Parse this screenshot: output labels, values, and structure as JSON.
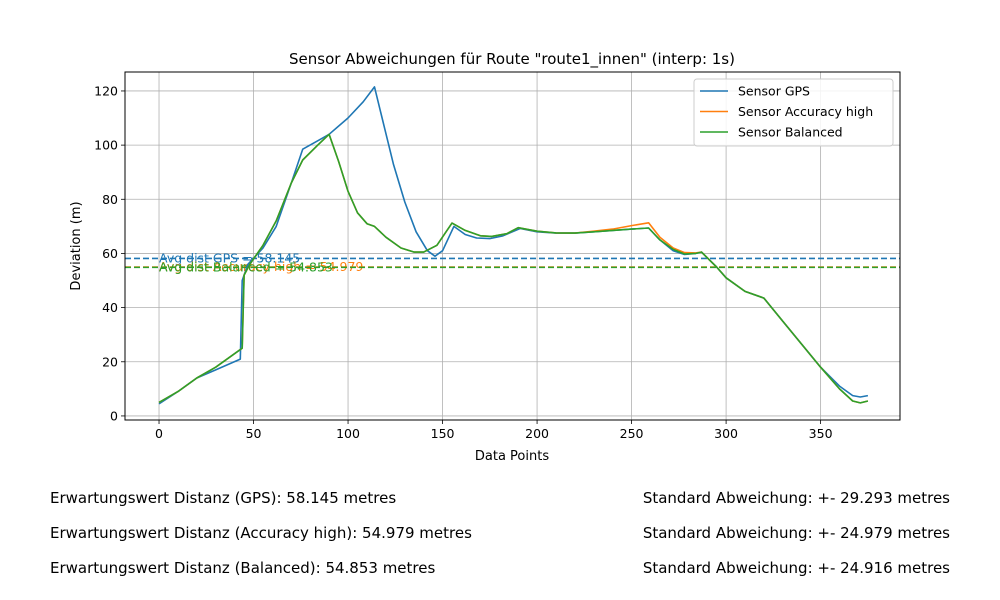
{
  "chart_data": {
    "type": "line",
    "title": "Sensor Abweichungen für Route \"route1_innen\" (interp: 1s)",
    "xlabel": "Data Points",
    "ylabel": "Deviation (m)",
    "xlim": [
      -18,
      392
    ],
    "ylim": [
      -1.5,
      127
    ],
    "xticks": [
      0,
      50,
      100,
      150,
      200,
      250,
      300,
      350
    ],
    "yticks": [
      0,
      20,
      40,
      60,
      80,
      100,
      120
    ],
    "grid": true,
    "legend_position": "top-right",
    "series": [
      {
        "name": "Sensor GPS",
        "color": "#1f77b4",
        "points": [
          [
            0,
            4.5
          ],
          [
            10,
            9
          ],
          [
            20,
            14
          ],
          [
            30,
            17
          ],
          [
            43,
            21
          ],
          [
            44,
            50
          ],
          [
            47,
            56
          ],
          [
            55,
            62
          ],
          [
            62,
            70
          ],
          [
            70,
            86
          ],
          [
            76,
            98.5
          ],
          [
            85,
            102
          ],
          [
            90,
            104
          ],
          [
            100,
            110
          ],
          [
            108,
            116
          ],
          [
            114,
            121.5
          ],
          [
            118,
            110
          ],
          [
            124,
            93
          ],
          [
            130,
            79
          ],
          [
            136,
            68
          ],
          [
            142,
            61
          ],
          [
            146,
            59
          ],
          [
            150,
            61
          ],
          [
            156,
            70
          ],
          [
            162,
            67
          ],
          [
            168,
            65.7
          ],
          [
            175,
            65.5
          ],
          [
            182,
            66.5
          ],
          [
            191,
            69.2
          ],
          [
            200,
            68
          ],
          [
            210,
            67.5
          ],
          [
            220,
            67.5
          ],
          [
            230,
            68
          ],
          [
            240,
            68.5
          ],
          [
            250,
            69
          ],
          [
            259,
            69.4
          ],
          [
            265,
            65
          ],
          [
            272,
            61
          ],
          [
            278,
            59.6
          ],
          [
            284,
            60
          ],
          [
            287,
            60.5
          ],
          [
            295,
            55
          ],
          [
            300,
            51
          ],
          [
            310,
            46
          ],
          [
            320,
            43.5
          ],
          [
            330,
            35
          ],
          [
            340,
            26.5
          ],
          [
            350,
            18
          ],
          [
            360,
            11
          ],
          [
            367,
            7.5
          ],
          [
            371,
            7
          ],
          [
            375,
            7.5
          ]
        ]
      },
      {
        "name": "Sensor Accuracy high",
        "color": "#ff7f0e",
        "points": [
          [
            0,
            5
          ],
          [
            10,
            9
          ],
          [
            20,
            14
          ],
          [
            30,
            18
          ],
          [
            44,
            25
          ],
          [
            45,
            52
          ],
          [
            48,
            56
          ],
          [
            55,
            63
          ],
          [
            62,
            72
          ],
          [
            70,
            86
          ],
          [
            76,
            94.5
          ],
          [
            84,
            100
          ],
          [
            90,
            104
          ],
          [
            95,
            94
          ],
          [
            100,
            83
          ],
          [
            105,
            75
          ],
          [
            110,
            71
          ],
          [
            114,
            70
          ],
          [
            120,
            66
          ],
          [
            128,
            62
          ],
          [
            135,
            60.5
          ],
          [
            140,
            60.5
          ],
          [
            147,
            63
          ],
          [
            155,
            71.2
          ],
          [
            162,
            68.5
          ],
          [
            170,
            66.5
          ],
          [
            176,
            66.3
          ],
          [
            184,
            67.3
          ],
          [
            190,
            69.5
          ],
          [
            200,
            68.2
          ],
          [
            210,
            67.6
          ],
          [
            220,
            67.5
          ],
          [
            230,
            68.2
          ],
          [
            240,
            69
          ],
          [
            250,
            70.3
          ],
          [
            259,
            71.3
          ],
          [
            265,
            66
          ],
          [
            272,
            62
          ],
          [
            278,
            60.3
          ],
          [
            284,
            60.2
          ],
          [
            287,
            60.5
          ],
          [
            295,
            55
          ],
          [
            300,
            51
          ],
          [
            310,
            46
          ],
          [
            320,
            43.5
          ],
          [
            330,
            35
          ],
          [
            340,
            26.5
          ],
          [
            350,
            18
          ],
          [
            360,
            10
          ],
          [
            367,
            5.5
          ],
          [
            371,
            4.8
          ],
          [
            375,
            5.5
          ]
        ]
      },
      {
        "name": "Sensor Balanced",
        "color": "#2ca02c",
        "points": [
          [
            0,
            5
          ],
          [
            10,
            9
          ],
          [
            20,
            14
          ],
          [
            30,
            18
          ],
          [
            44,
            25
          ],
          [
            45,
            52
          ],
          [
            48,
            56
          ],
          [
            55,
            63
          ],
          [
            62,
            72
          ],
          [
            70,
            86
          ],
          [
            76,
            94.5
          ],
          [
            84,
            100
          ],
          [
            90,
            104
          ],
          [
            95,
            94
          ],
          [
            100,
            83
          ],
          [
            105,
            75
          ],
          [
            110,
            71
          ],
          [
            114,
            70
          ],
          [
            120,
            66
          ],
          [
            128,
            62
          ],
          [
            135,
            60.5
          ],
          [
            140,
            60.5
          ],
          [
            147,
            63
          ],
          [
            155,
            71.2
          ],
          [
            162,
            68.5
          ],
          [
            170,
            66.5
          ],
          [
            176,
            66.3
          ],
          [
            184,
            67.3
          ],
          [
            190,
            69.5
          ],
          [
            200,
            68.2
          ],
          [
            210,
            67.6
          ],
          [
            220,
            67.5
          ],
          [
            230,
            68
          ],
          [
            240,
            68.5
          ],
          [
            250,
            69
          ],
          [
            259,
            69.4
          ],
          [
            265,
            65
          ],
          [
            272,
            61.5
          ],
          [
            278,
            59.8
          ],
          [
            284,
            60
          ],
          [
            287,
            60.5
          ],
          [
            295,
            55
          ],
          [
            300,
            51
          ],
          [
            310,
            46
          ],
          [
            320,
            43.5
          ],
          [
            330,
            35
          ],
          [
            340,
            26.5
          ],
          [
            350,
            18
          ],
          [
            360,
            10
          ],
          [
            367,
            5.5
          ],
          [
            371,
            4.8
          ],
          [
            375,
            5.5
          ]
        ]
      }
    ],
    "reference_lines": [
      {
        "label": "Avg dist GPS = 58.145",
        "value": 58.145,
        "color": "#1f77b4"
      },
      {
        "label": "Avg dist Accuracy high = 54.979",
        "value": 54.979,
        "color": "#ff7f0e"
      },
      {
        "label": "Avg dist Balanced = 54.853",
        "value": 54.853,
        "color": "#2ca02c"
      }
    ]
  },
  "stats": [
    {
      "mean": "Erwartungswert Distanz (GPS): 58.145 metres",
      "std": "Standard Abweichung: +- 29.293 metres"
    },
    {
      "mean": "Erwartungswert Distanz (Accuracy high): 54.979 metres",
      "std": "Standard Abweichung: +- 24.979 metres"
    },
    {
      "mean": "Erwartungswert Distanz (Balanced): 54.853 metres",
      "std": "Standard Abweichung: +- 24.916 metres"
    }
  ]
}
